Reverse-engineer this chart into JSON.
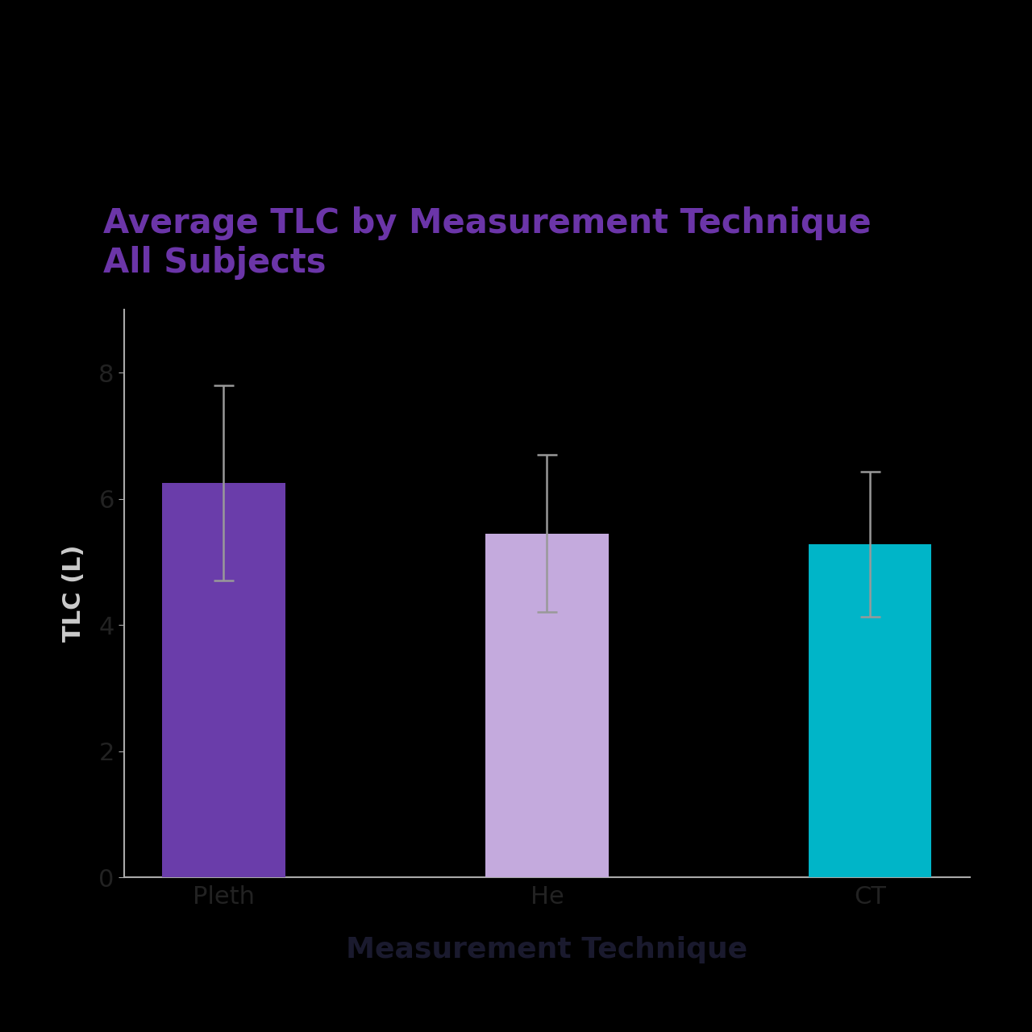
{
  "title_line1": "Average TLC by Measurement Technique",
  "title_line2": "All Subjects",
  "title_color": "#6B35A8",
  "xlabel": "Measurement Technique",
  "ylabel": "TLC (L)",
  "xlabel_color": "#1a1a2e",
  "ylabel_color": "#cccccc",
  "categories": [
    "Pleth",
    "He",
    "CT"
  ],
  "values": [
    6.25,
    5.45,
    5.28
  ],
  "errors": [
    1.55,
    1.25,
    1.15
  ],
  "bar_colors": [
    "#6A3DAA",
    "#C4AADD",
    "#00B5C8"
  ],
  "error_color": "#999999",
  "ylim": [
    0,
    9
  ],
  "yticks": [
    0,
    2,
    4,
    6,
    8
  ],
  "background_color": "#000000",
  "axes_facecolor": "#000000",
  "tick_label_color": "#222222",
  "spine_color": "#aaaaaa",
  "bar_width": 0.38,
  "title_fontsize": 30,
  "axis_label_fontsize": 22,
  "tick_fontsize": 22,
  "xlabel_fontsize": 26
}
